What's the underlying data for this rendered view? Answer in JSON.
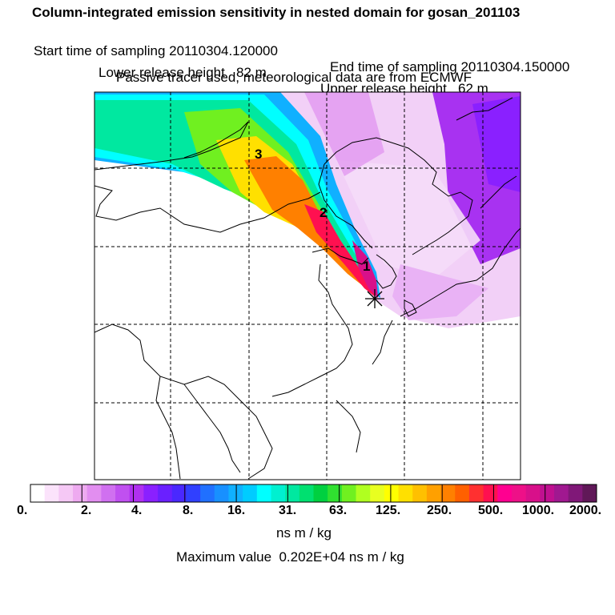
{
  "header": {
    "title": "Column-integrated emission sensitivity in nested domain for gosan_201103",
    "start_label": "Start time of sampling 20110304.120000",
    "end_label": "End time of sampling 20110304.150000",
    "lower_label": "Lower release height   82 m",
    "upper_label": "Upper release height   62 m",
    "note": "Passive tracer used, meteorological data are from ECMWF"
  },
  "map_labels": [
    "3",
    "2",
    "1"
  ],
  "colorbar": {
    "ticks": [
      "0.",
      "2.",
      "4.",
      "8.",
      "16.",
      "31.",
      "63.",
      "125.",
      "250.",
      "500.",
      "1000.",
      "2000."
    ],
    "colors": [
      "#ffffff",
      "#fbe3fb",
      "#f5c8f5",
      "#eeaaf0",
      "#e28ef0",
      "#d070f0",
      "#c050f0",
      "#b030f0",
      "#8a20ff",
      "#6a20ff",
      "#4a28ff",
      "#3040ff",
      "#2070ff",
      "#1890ff",
      "#10b0ff",
      "#00ccff",
      "#00ffff",
      "#00f0d0",
      "#00e8a0",
      "#00e070",
      "#00d040",
      "#30e030",
      "#70f020",
      "#b0ff20",
      "#e8ff20",
      "#ffff00",
      "#ffe000",
      "#ffc000",
      "#ffa000",
      "#ff8000",
      "#ff6000",
      "#ff3030",
      "#ff1050",
      "#ff0090",
      "#ee1088",
      "#d8108a",
      "#c01090",
      "#a01890",
      "#801878",
      "#601858"
    ],
    "units": "ns m / kg"
  },
  "max_value": "Maximum value  0.202E+04 ns m / kg",
  "colors": {
    "land_outline": "#000000",
    "grid": "#000000"
  }
}
